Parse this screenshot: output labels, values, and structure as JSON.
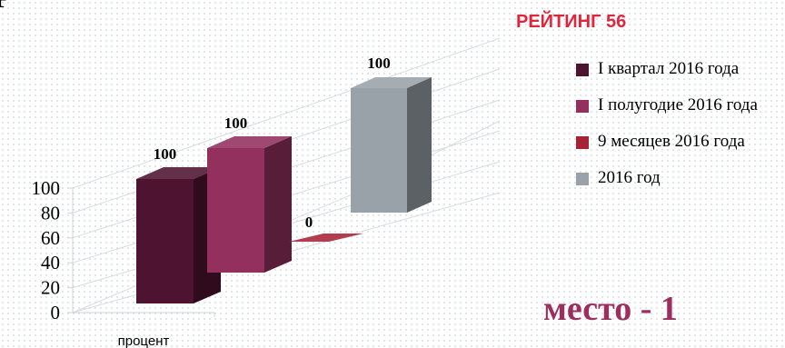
{
  "header": {
    "title": "Р",
    "rating": "РЕЙТИНГ 56",
    "place": "место - 1"
  },
  "chart_data": {
    "type": "bar",
    "categories": [
      "процент"
    ],
    "series": [
      {
        "name": "I квартал 2016 года",
        "values": [
          100
        ],
        "color": "#4e1330"
      },
      {
        "name": "I полугодие 2016 года",
        "values": [
          100
        ],
        "color": "#93305d"
      },
      {
        "name": "9 месяцев 2016 года",
        "values": [
          0
        ],
        "color": "#a62337"
      },
      {
        "name": "2016 год",
        "values": [
          100
        ],
        "color": "#99a2a8"
      }
    ],
    "data_labels": [
      "100",
      "100",
      "0",
      "100"
    ],
    "yticks": [
      0,
      20,
      40,
      60,
      80,
      100
    ],
    "ylim": [
      0,
      100
    ],
    "three_d": true,
    "grid": true,
    "legend_position": "right"
  }
}
